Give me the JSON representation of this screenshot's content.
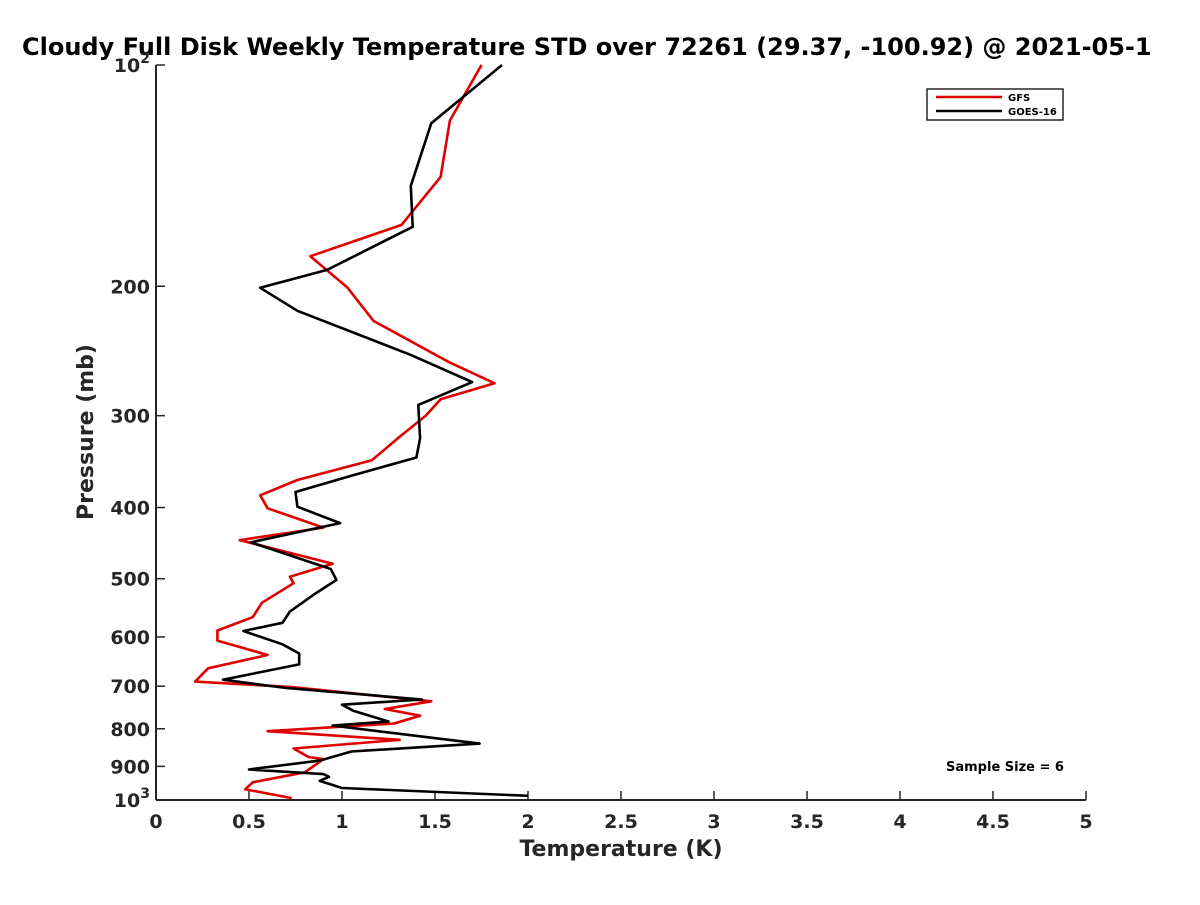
{
  "chart_data": {
    "type": "line",
    "title": "Cloudy Full Disk Weekly Temperature STD over 72261 (29.37, -100.92) @ 2021-05-1",
    "xlabel": "Temperature (K)",
    "ylabel": "Pressure (mb)",
    "xlim": [
      0,
      5
    ],
    "ylim": [
      1000,
      100
    ],
    "y_scale": "log",
    "y_reversed": true,
    "x_ticks": [
      "0",
      "0.5",
      "1",
      "1.5",
      "2",
      "2.5",
      "3",
      "3.5",
      "4",
      "4.5",
      "5"
    ],
    "x_tick_values": [
      0,
      0.5,
      1,
      1.5,
      2,
      2.5,
      3,
      3.5,
      4,
      4.5,
      5
    ],
    "y_ticks": [
      {
        "value": 100,
        "base": "10",
        "exp": "2"
      },
      {
        "value": 200,
        "label": "200"
      },
      {
        "value": 300,
        "label": "300"
      },
      {
        "value": 400,
        "label": "400"
      },
      {
        "value": 500,
        "label": "500"
      },
      {
        "value": 600,
        "label": "600"
      },
      {
        "value": 700,
        "label": "700"
      },
      {
        "value": 800,
        "label": "800"
      },
      {
        "value": 900,
        "label": "900"
      },
      {
        "value": 1000,
        "base": "10",
        "exp": "3"
      }
    ],
    "grid": false,
    "legend_position": "top-right",
    "annotation": "Sample Size = 6",
    "series": [
      {
        "name": "GFS",
        "color": "#e00000",
        "points": [
          [
            1.75,
            100
          ],
          [
            1.58,
            119
          ],
          [
            1.53,
            142
          ],
          [
            1.32,
            165
          ],
          [
            0.83,
            182
          ],
          [
            1.03,
            201
          ],
          [
            1.17,
            223
          ],
          [
            1.58,
            254
          ],
          [
            1.82,
            271
          ],
          [
            1.53,
            285
          ],
          [
            1.45,
            300
          ],
          [
            1.3,
            322
          ],
          [
            1.16,
            345
          ],
          [
            0.76,
            367
          ],
          [
            0.56,
            385
          ],
          [
            0.6,
            401
          ],
          [
            0.9,
            426
          ],
          [
            0.45,
            443
          ],
          [
            0.95,
            477
          ],
          [
            0.72,
            497
          ],
          [
            0.74,
            507
          ],
          [
            0.57,
            539
          ],
          [
            0.52,
            564
          ],
          [
            0.33,
            588
          ],
          [
            0.33,
            607
          ],
          [
            0.6,
            635
          ],
          [
            0.28,
            662
          ],
          [
            0.21,
            690
          ],
          [
            0.73,
            702
          ],
          [
            1.48,
            734
          ],
          [
            1.23,
            752
          ],
          [
            1.42,
            768
          ],
          [
            1.28,
            787
          ],
          [
            0.6,
            806
          ],
          [
            1.31,
            828
          ],
          [
            0.74,
            851
          ],
          [
            0.82,
            874
          ],
          [
            0.9,
            880
          ],
          [
            0.8,
            917
          ],
          [
            0.52,
            946
          ],
          [
            0.48,
            967
          ],
          [
            0.73,
            994
          ]
        ]
      },
      {
        "name": "GOES-16",
        "color": "#000000",
        "points": [
          [
            1.86,
            100
          ],
          [
            1.48,
            120
          ],
          [
            1.37,
            146
          ],
          [
            1.38,
            166
          ],
          [
            0.92,
            190
          ],
          [
            0.56,
            201
          ],
          [
            0.76,
            216
          ],
          [
            1.37,
            248
          ],
          [
            1.7,
            270
          ],
          [
            1.41,
            290
          ],
          [
            1.42,
            322
          ],
          [
            1.4,
            342
          ],
          [
            1.05,
            362
          ],
          [
            0.75,
            381
          ],
          [
            0.76,
            399
          ],
          [
            0.99,
            420
          ],
          [
            0.51,
            446
          ],
          [
            0.94,
            485
          ],
          [
            0.97,
            502
          ],
          [
            0.86,
            523
          ],
          [
            0.72,
            554
          ],
          [
            0.68,
            574
          ],
          [
            0.47,
            589
          ],
          [
            0.68,
            614
          ],
          [
            0.77,
            632
          ],
          [
            0.77,
            654
          ],
          [
            0.36,
            686
          ],
          [
            0.7,
            704
          ],
          [
            1.43,
            730
          ],
          [
            1.0,
            742
          ],
          [
            1.06,
            756
          ],
          [
            1.25,
            782
          ],
          [
            0.95,
            792
          ],
          [
            1.74,
            838
          ],
          [
            1.05,
            859
          ],
          [
            0.88,
            884
          ],
          [
            0.5,
            909
          ],
          [
            0.9,
            922
          ],
          [
            0.93,
            930
          ],
          [
            0.88,
            942
          ],
          [
            1.0,
            963
          ],
          [
            2.0,
            987
          ]
        ]
      }
    ]
  }
}
